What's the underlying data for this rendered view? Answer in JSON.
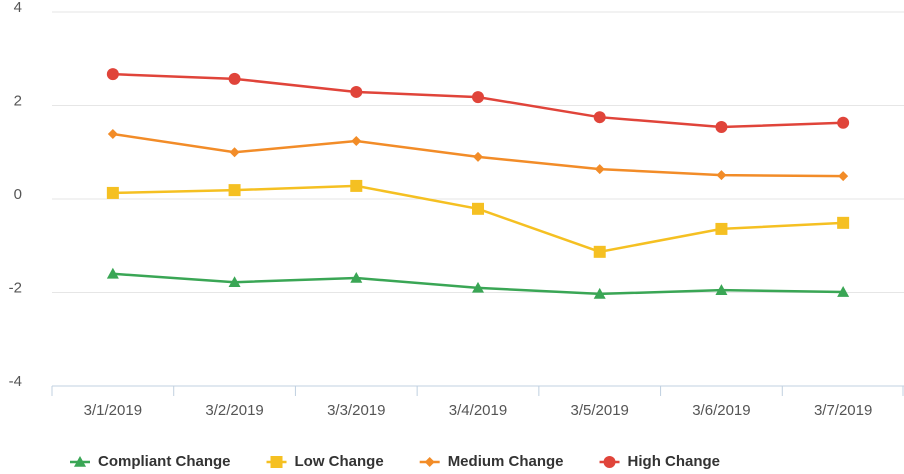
{
  "chart_data": {
    "type": "line",
    "categories": [
      "3/1/2019",
      "3/2/2019",
      "3/3/2019",
      "3/4/2019",
      "3/5/2019",
      "3/6/2019",
      "3/7/2019"
    ],
    "series": [
      {
        "name": "Compliant Change",
        "color": "#3aa655",
        "marker": "triangle",
        "values": [
          -1.6,
          -1.78,
          -1.69,
          -1.9,
          -2.03,
          -1.95,
          -1.99
        ]
      },
      {
        "name": "Low Change",
        "color": "#f5c022",
        "marker": "square",
        "values": [
          0.13,
          0.19,
          0.28,
          -0.21,
          -1.13,
          -0.64,
          -0.51
        ]
      },
      {
        "name": "Medium Change",
        "color": "#f28c28",
        "marker": "diamond",
        "values": [
          1.39,
          1.0,
          1.24,
          0.9,
          0.64,
          0.51,
          0.49
        ]
      },
      {
        "name": "High Change",
        "color": "#e0443a",
        "marker": "circle",
        "values": [
          2.67,
          2.57,
          2.29,
          2.18,
          1.75,
          1.54,
          1.63
        ]
      }
    ],
    "ylim": [
      -4,
      4
    ],
    "yticks": [
      -4,
      -2,
      0,
      2,
      4
    ],
    "grid": true,
    "legend": "bottom"
  }
}
